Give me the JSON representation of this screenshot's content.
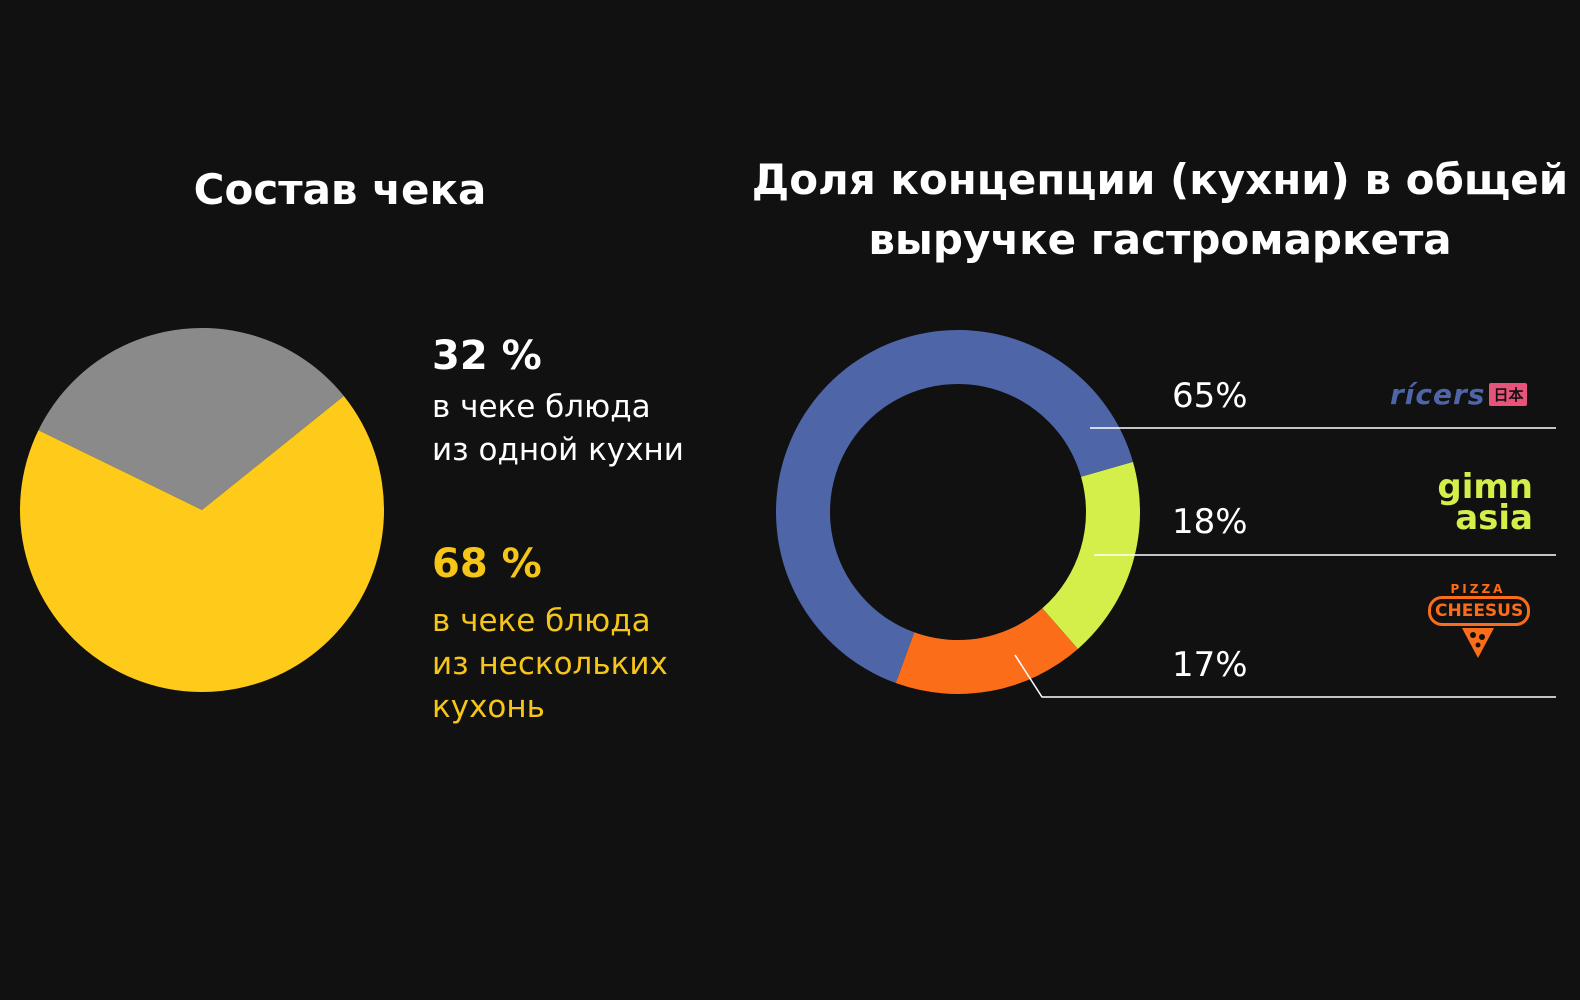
{
  "left": {
    "title": "Состав чека",
    "single": {
      "value": "32 %",
      "line1": "в чеке блюда",
      "line2": "из одной кухни"
    },
    "multi": {
      "value": "68 %",
      "line1": "в чеке блюда",
      "line2": "из нескольких",
      "line3": "кухонь"
    }
  },
  "right": {
    "title_line1": "Доля концепции (кухни) в общей",
    "title_line2": "выручке гастромаркета"
  },
  "chart_data": [
    {
      "type": "pie",
      "title": "Состав чека",
      "labels": [
        "в чеке блюда из одной кухни",
        "в чеке блюда из нескольких кухонь"
      ],
      "values": [
        32,
        68
      ],
      "colors": [
        "#8a8a8a",
        "#fecb1b"
      ]
    },
    {
      "type": "pie",
      "subtype": "donut",
      "title": "Доля концепции (кухни) в общей выручке гастромаркета",
      "labels": [
        "ricers",
        "gimn asia",
        "cheesus pizza"
      ],
      "display_labels": [
        "65%",
        "18%",
        "17%"
      ],
      "values": [
        65,
        18,
        17
      ],
      "colors": [
        "#4e65a8",
        "#d4ee4a",
        "#fb6d19"
      ]
    }
  ],
  "brands": {
    "ricers": {
      "name": "rícers",
      "tag": "日本",
      "color": "#4e65a8",
      "tag_color": "#e8537a"
    },
    "gimn": {
      "line1": "gimn",
      "line2": "asia",
      "color": "#d4ee4a"
    },
    "cheesus": {
      "top": "PIZZA",
      "name": "CHEESUS",
      "color": "#fb6d19"
    }
  }
}
